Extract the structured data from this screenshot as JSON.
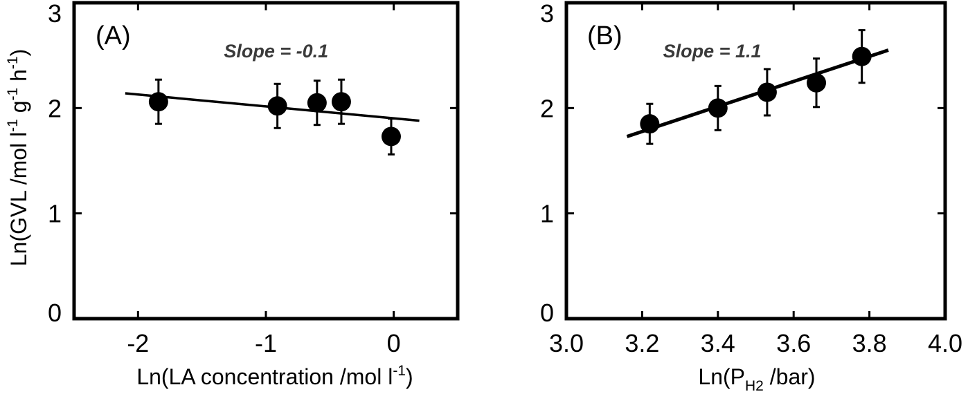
{
  "chart_data": [
    {
      "type": "scatter",
      "panel_label": "(A)",
      "title": "",
      "xlabel": "Ln(LA concentration /mol l",
      "xlabel_sup": "-1",
      "xlabel_end": ")",
      "ylabel": "Ln(GVL /mol l",
      "ylabel_sup1": "-1",
      "ylabel_mid1": " g",
      "ylabel_sup2": "-1",
      "ylabel_mid2": " h",
      "ylabel_sup3": "-1",
      "ylabel_end": ")",
      "xlim": [
        -2.5,
        0.5
      ],
      "ylim": [
        0,
        3
      ],
      "xticks": [
        -2,
        -1,
        0
      ],
      "xtick_labels": [
        "-2",
        "-1",
        "0"
      ],
      "yticks": [
        0,
        1,
        2,
        3
      ],
      "ytick_labels": [
        "0",
        "1",
        "2",
        "3"
      ],
      "points": [
        {
          "x": -1.84,
          "y": 2.06,
          "err": 0.21
        },
        {
          "x": -0.91,
          "y": 2.02,
          "err": 0.21
        },
        {
          "x": -0.6,
          "y": 2.05,
          "err": 0.21
        },
        {
          "x": -0.41,
          "y": 2.06,
          "err": 0.21
        },
        {
          "x": -0.02,
          "y": 1.73,
          "err": 0.17
        }
      ],
      "fit_line": {
        "x": [
          -2.1,
          0.2
        ],
        "y": [
          2.14,
          1.88
        ]
      },
      "annotation": "Slope = -0.1",
      "annotation_pos": {
        "x": -0.92,
        "y": 2.48
      }
    },
    {
      "type": "scatter",
      "panel_label": "(B)",
      "title": "",
      "xlabel": "Ln(P",
      "xlabel_sub": "H2",
      "xlabel_end": " /bar)",
      "ylabel": "",
      "xlim": [
        3.0,
        4.0
      ],
      "ylim": [
        0,
        3
      ],
      "xticks": [
        3.0,
        3.2,
        3.4,
        3.6,
        3.8,
        4.0
      ],
      "xtick_labels": [
        "3.0",
        "3.2",
        "3.4",
        "3.6",
        "3.8",
        "4.0"
      ],
      "yticks": [
        0,
        1,
        2,
        3
      ],
      "ytick_labels": [
        "0",
        "1",
        "2",
        "3"
      ],
      "points": [
        {
          "x": 3.22,
          "y": 1.85,
          "err": 0.19
        },
        {
          "x": 3.4,
          "y": 2.0,
          "err": 0.21
        },
        {
          "x": 3.53,
          "y": 2.15,
          "err": 0.22
        },
        {
          "x": 3.66,
          "y": 2.24,
          "err": 0.23
        },
        {
          "x": 3.78,
          "y": 2.49,
          "err": 0.25
        }
      ],
      "fit_line": {
        "x": [
          3.16,
          3.85
        ],
        "y": [
          1.73,
          2.55
        ]
      },
      "annotation": "Slope = 1.1",
      "annotation_pos": {
        "x": 3.385,
        "y": 2.48
      }
    }
  ]
}
